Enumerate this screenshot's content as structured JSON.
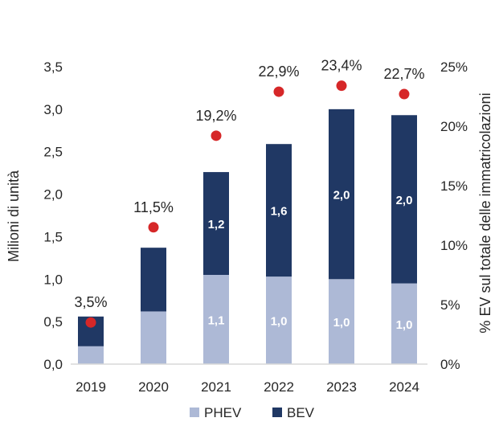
{
  "chart_data": {
    "type": "bar",
    "stacked": true,
    "categories": [
      "2019",
      "2020",
      "2021",
      "2022",
      "2023",
      "2024"
    ],
    "series": [
      {
        "name": "PHEV",
        "values": [
          0.21,
          0.62,
          1.05,
          1.03,
          1.0,
          0.95
        ],
        "labels": [
          "",
          "",
          "1,1",
          "1,0",
          "1,0",
          "1,0"
        ],
        "color": "#adb9d6"
      },
      {
        "name": "BEV",
        "values": [
          0.35,
          0.75,
          1.21,
          1.56,
          2.0,
          1.98
        ],
        "labels": [
          "",
          "",
          "1,2",
          "1,6",
          "2,0",
          "2,0"
        ],
        "color": "#203864"
      }
    ],
    "ev_share": {
      "values": [
        3.5,
        11.5,
        19.2,
        22.9,
        23.4,
        22.7
      ],
      "labels": [
        "3,5%",
        "11,5%",
        "19,2%",
        "22,9%",
        "23,4%",
        "22,7%"
      ],
      "color": "#d62728"
    },
    "y_left": {
      "label": "Milioni di unità",
      "range": [
        0,
        3.5
      ],
      "ticks": [
        0,
        0.5,
        1.0,
        1.5,
        2.0,
        2.5,
        3.0,
        3.5
      ],
      "tick_labels": [
        "0,0",
        "0,5",
        "1,0",
        "1,5",
        "2,0",
        "2,5",
        "3,0",
        "3,5"
      ]
    },
    "y_right": {
      "label": "% EV sul totale delle immatricolazioni",
      "range": [
        0,
        25
      ],
      "ticks": [
        0,
        5,
        10,
        15,
        20,
        25
      ],
      "tick_labels": [
        "0%",
        "5%",
        "10%",
        "15%",
        "20%",
        "25%"
      ]
    },
    "grid": false,
    "legend": {
      "position": "bottom",
      "items": [
        "PHEV",
        "BEV"
      ]
    }
  }
}
